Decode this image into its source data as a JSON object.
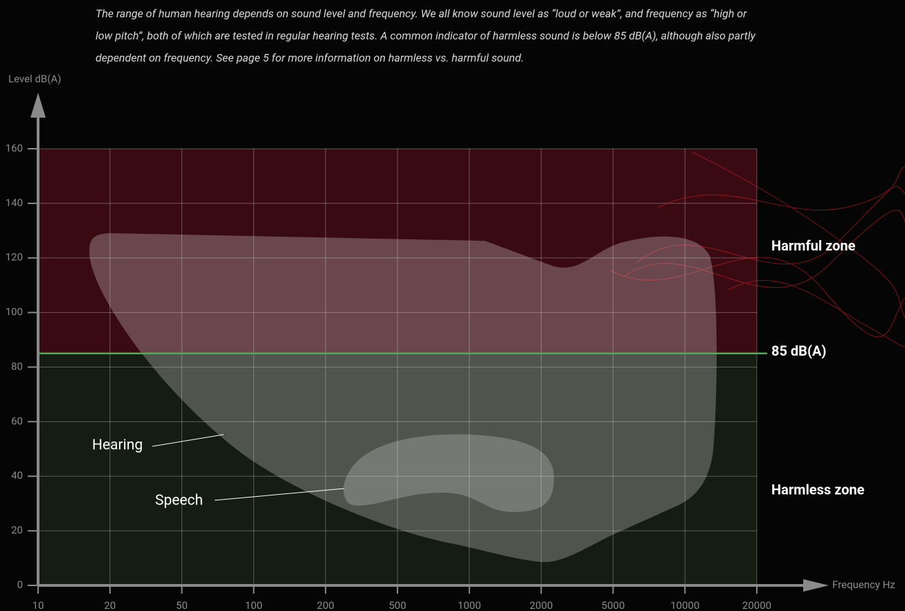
{
  "chart_data": {
    "type": "zone",
    "subtitle": "The range of human hearing depends on sound level and frequency. We all know sound level as “loud or weak”, and frequency as “high or low pitch”, both of which are tested in regular hearing tests. A common indicator of harmless sound is below 85 dB(A), although also partly dependent on frequency. See page 5 for more information on harmless vs. harmful sound.",
    "ylabel": "Level dB(A)",
    "xlabel": "Frequency Hz",
    "xticks": [
      10,
      20,
      50,
      100,
      200,
      500,
      1000,
      2000,
      5000,
      10000,
      20000
    ],
    "ylim": [
      0,
      160
    ],
    "yticks": [
      0,
      20,
      40,
      60,
      80,
      100,
      120,
      140,
      160
    ],
    "grid": true,
    "threshold": {
      "value": 85,
      "label": "85 dB(A)",
      "color": "#4caf50"
    },
    "zones": [
      {
        "name": "Harmful zone",
        "color": "#3a0a12",
        "side": "above"
      },
      {
        "name": "Harmless zone",
        "color": "#151c11",
        "side": "below"
      }
    ],
    "annotations": [
      "Hearing",
      "Speech"
    ]
  }
}
